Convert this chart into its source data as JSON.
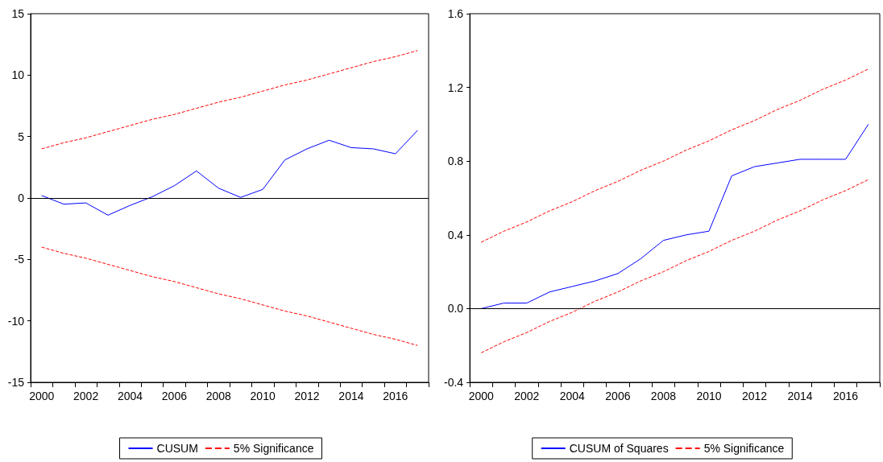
{
  "chart_data": [
    {
      "type": "line",
      "categories": [
        "2000",
        null,
        "2002",
        null,
        "2004",
        null,
        "2006",
        null,
        "2008",
        null,
        "2010",
        null,
        "2012",
        null,
        "2014",
        null,
        "2016",
        null
      ],
      "series": [
        {
          "name": "CUSUM",
          "color": "#0000ff",
          "line_style": "solid",
          "values": [
            0.2,
            -0.5,
            -0.4,
            -1.4,
            -0.6,
            0.1,
            1.0,
            2.2,
            0.8,
            0.05,
            0.7,
            3.1,
            4.0,
            4.7,
            4.1,
            4.0,
            3.6,
            5.5
          ]
        },
        {
          "name": "5% Significance",
          "color": "#ff0000",
          "line_style": "dashed",
          "values": [
            4,
            4.5,
            4.9,
            5.4,
            5.9,
            6.4,
            6.8,
            7.3,
            7.8,
            8.2,
            8.7,
            9.2,
            9.6,
            10.1,
            10.6,
            11.1,
            11.5,
            12
          ]
        },
        {
          "color": "#ff0000",
          "line_style": "dashed",
          "values": [
            -4,
            -4.5,
            -4.9,
            -5.4,
            -5.9,
            -6.4,
            -6.8,
            -7.3,
            -7.8,
            -8.2,
            -8.7,
            -9.2,
            -9.6,
            -10.1,
            -10.6,
            -11.1,
            -11.5,
            -12
          ]
        }
      ],
      "ylim": [
        -15,
        15
      ],
      "yticks": [
        -15,
        -10,
        -5,
        0,
        5,
        10,
        15
      ],
      "ref_lines": [
        {
          "axis": "y",
          "value": 0,
          "color": "#000000",
          "line_style": "solid"
        }
      ],
      "legend": "bottom"
    },
    {
      "type": "line",
      "categories": [
        "2000",
        null,
        "2002",
        null,
        "2004",
        null,
        "2006",
        null,
        "2008",
        null,
        "2010",
        null,
        "2012",
        null,
        "2014",
        null,
        "2016",
        null
      ],
      "series": [
        {
          "name": "CUSUM of Squares",
          "color": "#0000ff",
          "line_style": "solid",
          "values": [
            0.0,
            0.03,
            0.03,
            0.09,
            0.12,
            0.15,
            0.19,
            0.27,
            0.37,
            0.4,
            0.42,
            0.72,
            0.77,
            0.79,
            0.81,
            0.81,
            0.81,
            1.0
          ]
        },
        {
          "name": "5% Significance",
          "color": "#ff0000",
          "line_style": "dashed",
          "values": [
            0.36,
            0.42,
            0.47,
            0.53,
            0.58,
            0.64,
            0.69,
            0.75,
            0.8,
            0.86,
            0.91,
            0.97,
            1.02,
            1.08,
            1.13,
            1.19,
            1.24,
            1.3
          ]
        },
        {
          "color": "#ff0000",
          "line_style": "dashed",
          "values": [
            -0.24,
            -0.18,
            -0.13,
            -0.07,
            -0.02,
            0.04,
            0.09,
            0.15,
            0.2,
            0.26,
            0.31,
            0.37,
            0.42,
            0.48,
            0.53,
            0.59,
            0.64,
            0.7
          ]
        }
      ],
      "ylim": [
        -0.4,
        1.6
      ],
      "yticks": [
        -0.4,
        {
          "value": 0,
          "label": "0.0"
        },
        0.4,
        0.8,
        1.2,
        1.6
      ],
      "ref_lines": [
        {
          "axis": "y",
          "value": 0,
          "color": "#000000",
          "line_style": "solid"
        }
      ],
      "legend": "bottom"
    }
  ]
}
